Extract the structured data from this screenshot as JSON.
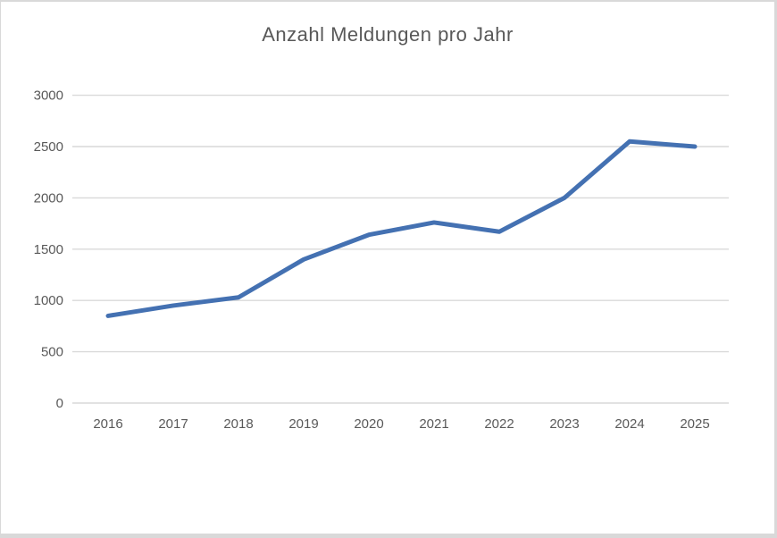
{
  "title": "Anzahl Meldungen pro Jahr",
  "colors": {
    "line": "#4471B2",
    "gridline": "#D9D9D9",
    "text": "#595959",
    "border": "#D9D9D9",
    "background": "#FFFFFF"
  },
  "chart_data": {
    "type": "line",
    "title": "Anzahl Meldungen pro Jahr",
    "categories": [
      "2016",
      "2017",
      "2018",
      "2019",
      "2020",
      "2021",
      "2022",
      "2023",
      "2024",
      "2025"
    ],
    "values": [
      850,
      950,
      1030,
      1400,
      1640,
      1760,
      1670,
      2000,
      2550,
      2500
    ],
    "xlabel": "",
    "ylabel": "",
    "ylim": [
      0,
      3000
    ],
    "ytick_interval": 500,
    "y_ticks": [
      0,
      500,
      1000,
      1500,
      2000,
      2500,
      3000
    ],
    "grid": true,
    "legend": false
  }
}
